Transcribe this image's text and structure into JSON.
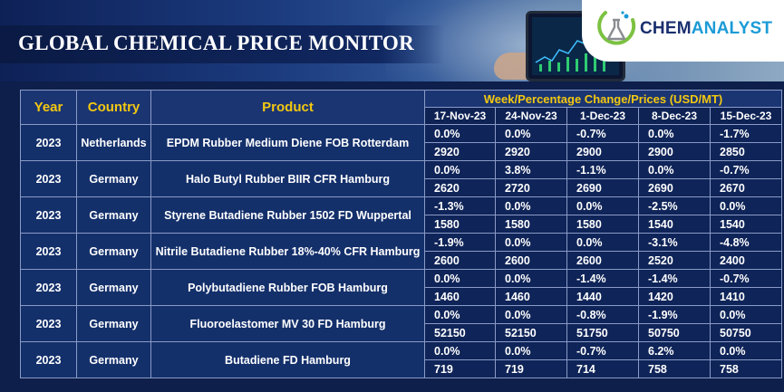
{
  "header": {
    "title": "GLOBAL CHEMICAL PRICE MONITOR",
    "logo": {
      "part1": "CHEM",
      "part2": "ANALYST"
    }
  },
  "table": {
    "columns": {
      "year": "Year",
      "country": "Country",
      "product": "Product"
    },
    "group_header": "Week/Percentage Change/Prices (USD/MT)",
    "dates": [
      "17-Nov-23",
      "24-Nov-23",
      "1-Dec-23",
      "8-Dec-23",
      "15-Dec-23"
    ],
    "rows": [
      {
        "year": "2023",
        "country": "Netherlands",
        "product": "EPDM Rubber Medium Diene FOB Rotterdam",
        "changes": [
          "0.0%",
          "0.0%",
          "-0.7%",
          "0.0%",
          "-1.7%"
        ],
        "prices": [
          "2920",
          "2920",
          "2900",
          "2900",
          "2850"
        ]
      },
      {
        "year": "2023",
        "country": "Germany",
        "product": "Halo Butyl Rubber BIIR CFR Hamburg",
        "changes": [
          "0.0%",
          "3.8%",
          "-1.1%",
          "0.0%",
          "-0.7%"
        ],
        "prices": [
          "2620",
          "2720",
          "2690",
          "2690",
          "2670"
        ]
      },
      {
        "year": "2023",
        "country": "Germany",
        "product": "Styrene Butadiene Rubber 1502 FD Wuppertal",
        "changes": [
          "-1.3%",
          "0.0%",
          "0.0%",
          "-2.5%",
          "0.0%"
        ],
        "prices": [
          "1580",
          "1580",
          "1580",
          "1540",
          "1540"
        ]
      },
      {
        "year": "2023",
        "country": "Germany",
        "product": "Nitrile Butadiene Rubber 18%-40% CFR Hamburg",
        "changes": [
          "-1.9%",
          "0.0%",
          "0.0%",
          "-3.1%",
          "-4.8%"
        ],
        "prices": [
          "2600",
          "2600",
          "2600",
          "2520",
          "2400"
        ]
      },
      {
        "year": "2023",
        "country": "Germany",
        "product": "Polybutadiene Rubber FOB Hamburg",
        "changes": [
          "0.0%",
          "0.0%",
          "-1.4%",
          "-1.4%",
          "-0.7%"
        ],
        "prices": [
          "1460",
          "1460",
          "1440",
          "1420",
          "1410"
        ]
      },
      {
        "year": "2023",
        "country": "Germany",
        "product": "Fluoroelastomer MV 30 FD Hamburg",
        "changes": [
          "0.0%",
          "0.0%",
          "-0.8%",
          "-1.9%",
          "0.0%"
        ],
        "prices": [
          "52150",
          "52150",
          "51750",
          "50750",
          "50750"
        ]
      },
      {
        "year": "2023",
        "country": "Germany",
        "product": "Butadiene FD Hamburg",
        "changes": [
          "0.0%",
          "0.0%",
          "-0.7%",
          "6.2%",
          "0.0%"
        ],
        "prices": [
          "719",
          "719",
          "714",
          "758",
          "758"
        ]
      }
    ]
  }
}
